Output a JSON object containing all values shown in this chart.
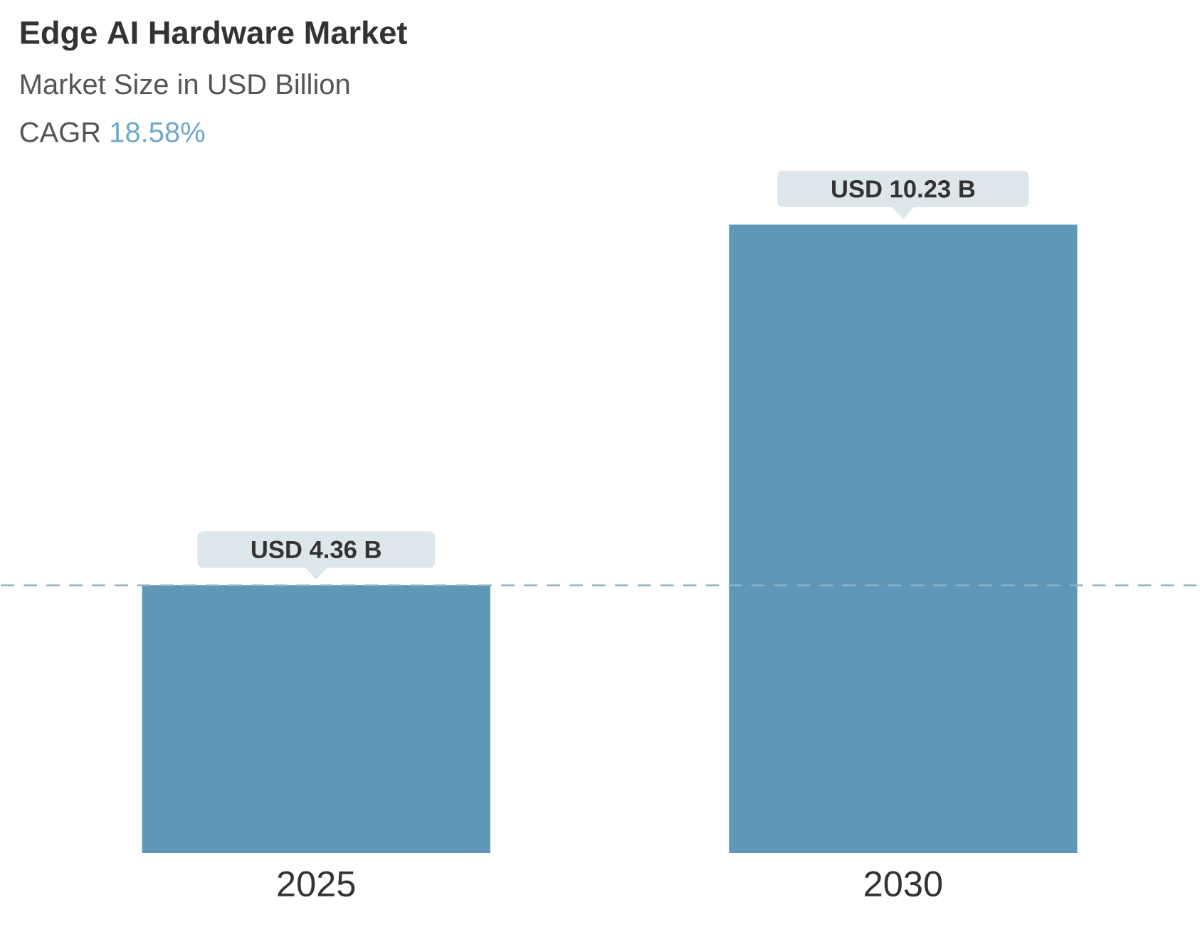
{
  "chart_data": {
    "type": "bar",
    "title": "Edge AI Hardware Market",
    "subtitle": "Market Size in USD Billion",
    "annotations": [
      "CAGR",
      "18.58%"
    ],
    "categories": [
      "2025",
      "2030"
    ],
    "values": [
      4.36,
      10.23
    ],
    "value_labels": [
      "USD 4.36 B",
      "USD 10.23 B"
    ],
    "color": "#5e97b8",
    "ref_lines": [
      {
        "axis": "y",
        "value": 4.36,
        "line_style": "dashed",
        "color": "#8fb3c6"
      }
    ]
  }
}
